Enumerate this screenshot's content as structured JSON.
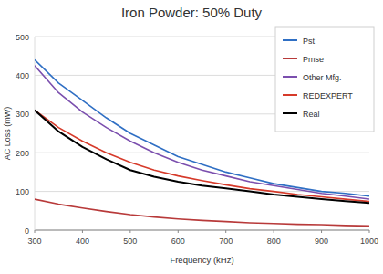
{
  "chart_data": {
    "type": "line",
    "title": "Iron Powder: 50% Duty",
    "x_label": "Frequency (kHz)",
    "y_label": "AC Loss (mW)",
    "x": [
      300,
      350,
      400,
      450,
      500,
      550,
      600,
      650,
      700,
      750,
      800,
      850,
      900,
      950,
      1000
    ],
    "series": [
      {
        "name": "Pst",
        "color": "#2f6fc4",
        "values": [
          440,
          380,
          335,
          290,
          250,
          220,
          190,
          170,
          150,
          135,
          120,
          110,
          100,
          95,
          88
        ]
      },
      {
        "name": "Pmse",
        "color": "#b83a3a",
        "values": [
          80,
          67,
          57,
          48,
          40,
          34,
          29,
          25,
          22,
          19,
          17,
          15,
          14,
          12,
          11
        ]
      },
      {
        "name": "Other Mfg.",
        "color": "#7b4fae",
        "values": [
          425,
          355,
          305,
          265,
          230,
          200,
          175,
          155,
          140,
          125,
          115,
          105,
          95,
          88,
          80
        ]
      },
      {
        "name": "REDEXPERT",
        "color": "#d63a2a",
        "values": [
          310,
          265,
          230,
          200,
          175,
          155,
          140,
          128,
          117,
          107,
          100,
          92,
          86,
          80,
          74
        ]
      },
      {
        "name": "Real",
        "color": "#000000",
        "values": [
          310,
          255,
          215,
          183,
          155,
          138,
          125,
          115,
          108,
          100,
          92,
          86,
          80,
          75,
          70
        ]
      }
    ],
    "xlim": [
      300,
      1000
    ],
    "xticks": [
      300,
      400,
      500,
      600,
      700,
      800,
      900,
      1000
    ],
    "ylim": [
      0,
      500
    ],
    "yticks": [
      0,
      100,
      200,
      300,
      400,
      500
    ],
    "grid": true,
    "legend": "upper right"
  }
}
